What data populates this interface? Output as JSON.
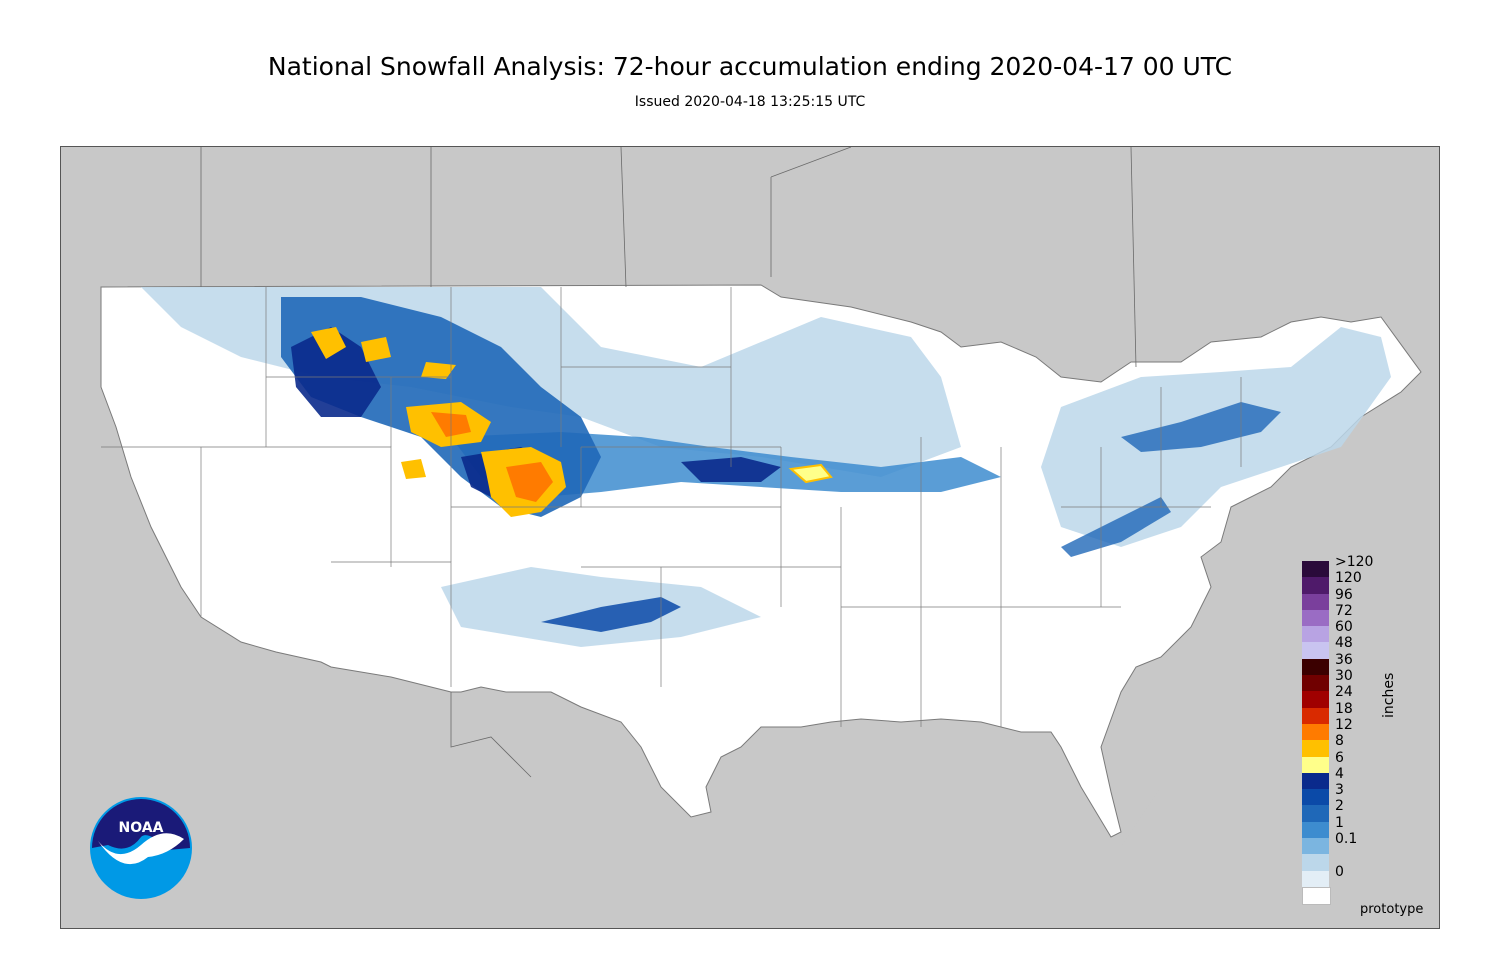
{
  "title": "National Snowfall Analysis: 72-hour accumulation ending 2020-04-17 00 UTC",
  "subtitle": "Issued 2020-04-18 13:25:15 UTC",
  "units_label": "inches",
  "footer_note": "prototype",
  "logo": {
    "icon": "noaa-logo",
    "text": "NOAA"
  },
  "colors": {
    "outside_land": "#c8c8c8",
    "water": "#9aa3b0",
    "us_base": "#ffffff",
    "boundary": "#7a7a7a"
  },
  "legend": {
    "items": [
      {
        "label": ">120",
        "color": "#2a0a3a"
      },
      {
        "label": "120",
        "color": "#4f1a6a"
      },
      {
        "label": "96",
        "color": "#7a3f9c"
      },
      {
        "label": "72",
        "color": "#9a6cc4"
      },
      {
        "label": "60",
        "color": "#b8a3e3"
      },
      {
        "label": "48",
        "color": "#c9c4f0"
      },
      {
        "label": "36",
        "color": "#3b0000"
      },
      {
        "label": "30",
        "color": "#700000"
      },
      {
        "label": "24",
        "color": "#a00000"
      },
      {
        "label": "18",
        "color": "#d92a00"
      },
      {
        "label": "12",
        "color": "#ff7b00"
      },
      {
        "label": "8",
        "color": "#ffc000"
      },
      {
        "label": "6",
        "color": "#ffff8a"
      },
      {
        "label": "4",
        "color": "#0a2a8c"
      },
      {
        "label": "3",
        "color": "#0b4aa8"
      },
      {
        "label": "2",
        "color": "#1f68b8"
      },
      {
        "label": "1",
        "color": "#3d8ccf"
      },
      {
        "label": "0.1",
        "color": "#7bb5e0"
      },
      {
        "label": "",
        "color": "#bcd7ea"
      },
      {
        "label": "0",
        "color": "#e3eef6"
      },
      {
        "label": "",
        "color": "#ffffff"
      }
    ]
  }
}
